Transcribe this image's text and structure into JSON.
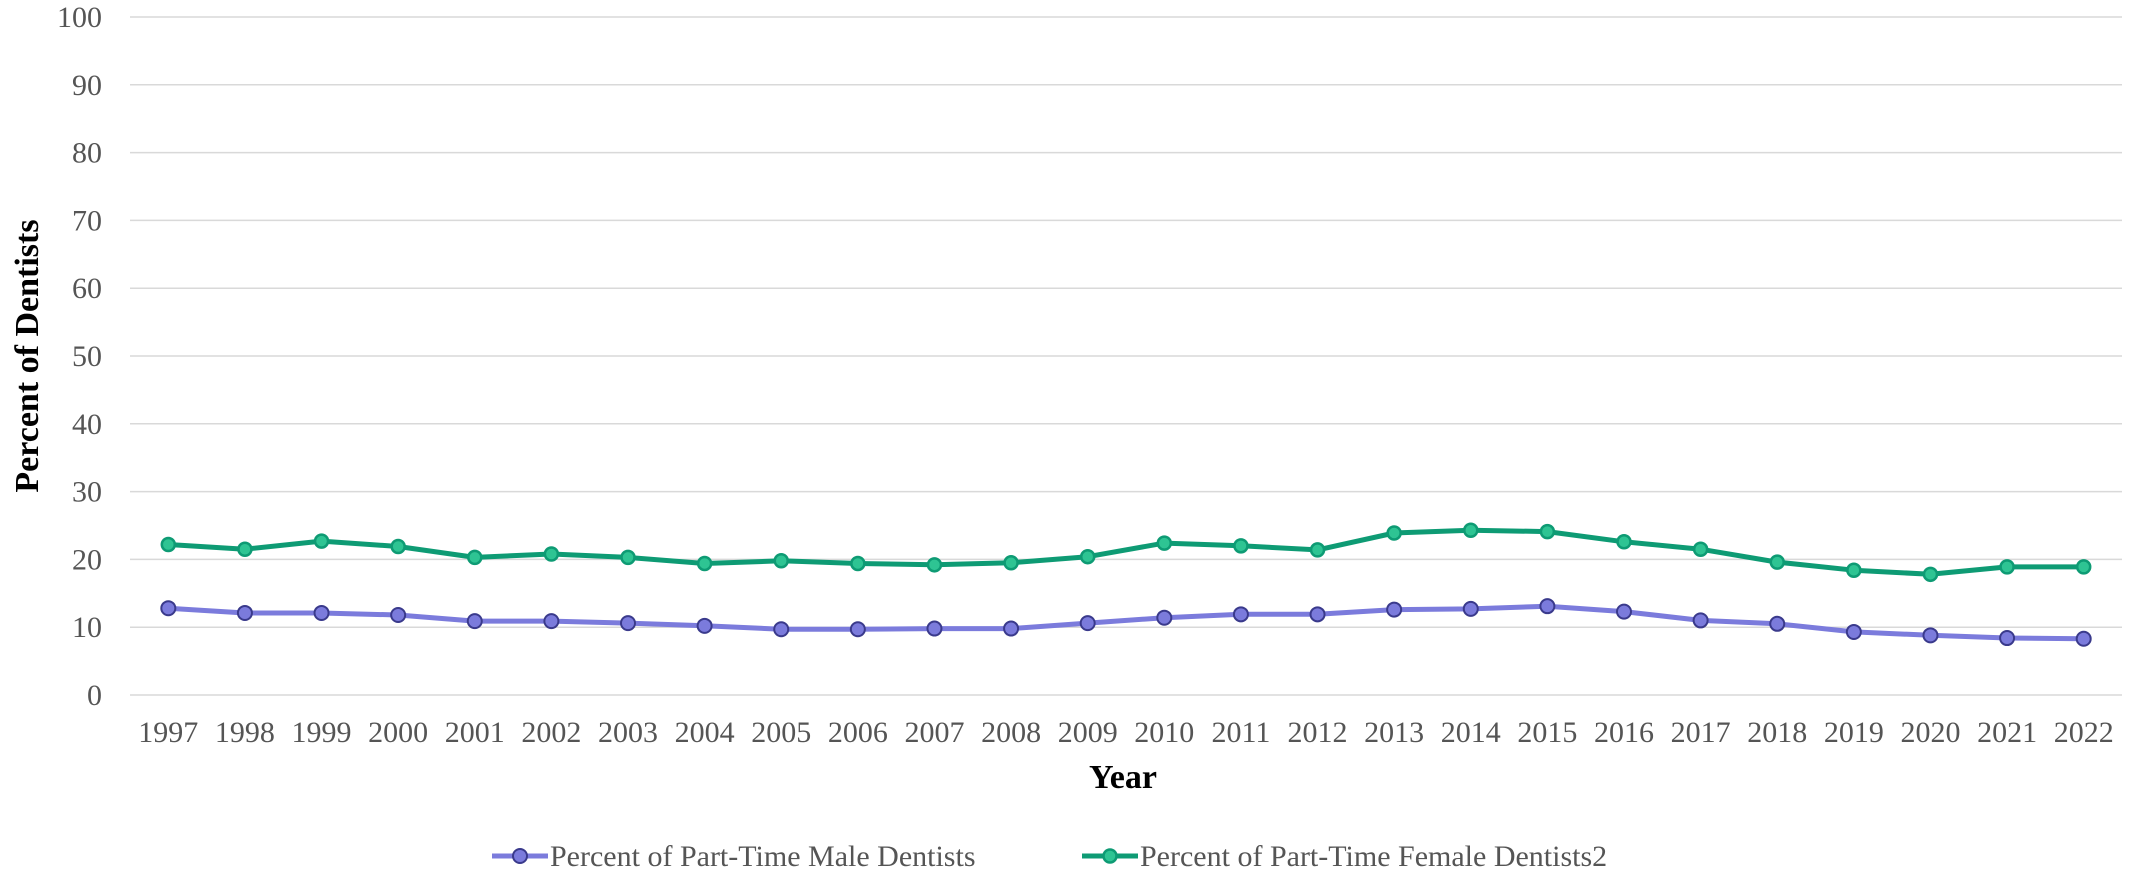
{
  "chart_data": {
    "type": "line",
    "title": "",
    "xlabel": "Year",
    "ylabel": "Percent of Dentists",
    "ylim": [
      0,
      100
    ],
    "yticks": [
      0,
      10,
      20,
      30,
      40,
      50,
      60,
      70,
      80,
      90,
      100
    ],
    "grid": true,
    "legend_position": "bottom",
    "categories": [
      "1997",
      "1998",
      "1999",
      "2000",
      "2001",
      "2002",
      "2003",
      "2004",
      "2005",
      "2006",
      "2007",
      "2008",
      "2009",
      "2010",
      "2011",
      "2012",
      "2013",
      "2014",
      "2015",
      "2016",
      "2017",
      "2018",
      "2019",
      "2020",
      "2021",
      "2022"
    ],
    "series": [
      {
        "name": "Percent of Part-Time Male Dentists",
        "color": "#7b7bdc",
        "values": [
          12.8,
          12.1,
          12.1,
          11.8,
          10.9,
          10.9,
          10.6,
          10.2,
          9.7,
          9.7,
          9.8,
          9.8,
          10.6,
          11.4,
          11.9,
          11.9,
          12.6,
          12.7,
          13.1,
          12.3,
          11.0,
          10.5,
          9.3,
          8.8,
          8.4,
          8.3
        ]
      },
      {
        "name": "Percent of Part-Time Female Dentists2",
        "color": "#0e9b74",
        "values": [
          22.2,
          21.5,
          22.7,
          21.9,
          20.3,
          20.8,
          20.3,
          19.4,
          19.8,
          19.4,
          19.2,
          19.5,
          20.4,
          22.4,
          22.0,
          21.4,
          23.9,
          24.3,
          24.1,
          22.6,
          21.5,
          19.6,
          18.4,
          17.8,
          18.9,
          18.9
        ]
      }
    ]
  }
}
